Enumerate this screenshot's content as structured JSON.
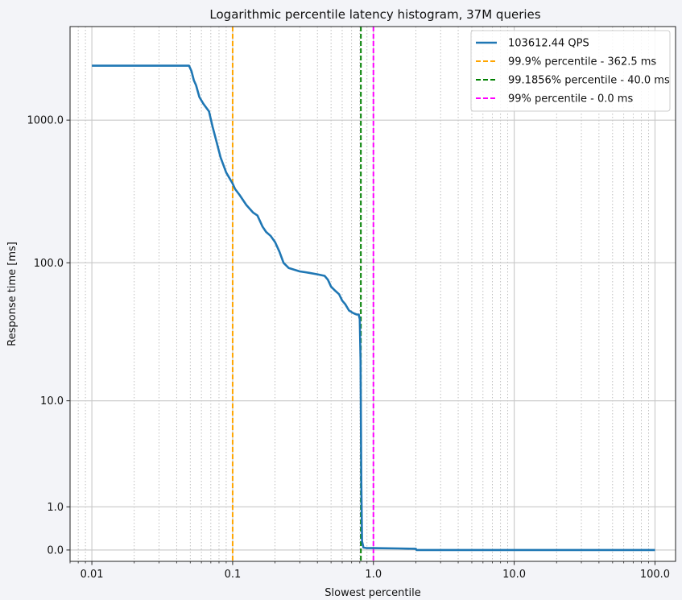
{
  "chart_data": {
    "type": "line",
    "title": "Logarithmic percentile latency histogram, 37M queries",
    "xlabel": "Slowest percentile",
    "ylabel": "Response time [ms]",
    "x_scale": "log",
    "x_range": [
      0.007,
      140
    ],
    "x_ticks": [
      {
        "value": 0.01,
        "label": "0.01"
      },
      {
        "value": 0.1,
        "label": "0.1"
      },
      {
        "value": 1,
        "label": "1.0"
      },
      {
        "value": 10,
        "label": "10.0"
      },
      {
        "value": 100,
        "label": "100.0"
      }
    ],
    "y_scale": "symlog",
    "y_range": [
      -0.2,
      4500
    ],
    "y_ticks": [
      {
        "value": 0,
        "label": "0.0"
      },
      {
        "value": 1,
        "label": "1.0"
      },
      {
        "value": 10,
        "label": "10.0"
      },
      {
        "value": 100,
        "label": "100.0"
      },
      {
        "value": 1000,
        "label": "1000.0"
      }
    ],
    "grid": true,
    "legend_position": "top-right",
    "series": [
      {
        "name": "103612.44 QPS",
        "color": "#1f77b4",
        "style": "solid",
        "points": [
          [
            0.01,
            2400
          ],
          [
            0.049,
            2400
          ],
          [
            0.051,
            2200
          ],
          [
            0.053,
            1900
          ],
          [
            0.055,
            1750
          ],
          [
            0.058,
            1450
          ],
          [
            0.062,
            1300
          ],
          [
            0.068,
            1150
          ],
          [
            0.072,
            900
          ],
          [
            0.077,
            700
          ],
          [
            0.082,
            550
          ],
          [
            0.09,
            430
          ],
          [
            0.1,
            360
          ],
          [
            0.104,
            330
          ],
          [
            0.112,
            300
          ],
          [
            0.125,
            255
          ],
          [
            0.14,
            225
          ],
          [
            0.15,
            215
          ],
          [
            0.163,
            180
          ],
          [
            0.173,
            165
          ],
          [
            0.186,
            155
          ],
          [
            0.2,
            140
          ],
          [
            0.215,
            120
          ],
          [
            0.23,
            100
          ],
          [
            0.25,
            92
          ],
          [
            0.3,
            87
          ],
          [
            0.35,
            85
          ],
          [
            0.4,
            83
          ],
          [
            0.45,
            81
          ],
          [
            0.475,
            76
          ],
          [
            0.5,
            68
          ],
          [
            0.53,
            64
          ],
          [
            0.57,
            60
          ],
          [
            0.6,
            54
          ],
          [
            0.63,
            51
          ],
          [
            0.67,
            46
          ],
          [
            0.72,
            44
          ],
          [
            0.76,
            43
          ],
          [
            0.785,
            43
          ],
          [
            0.8,
            40
          ],
          [
            0.81,
            20
          ],
          [
            0.82,
            2
          ],
          [
            0.83,
            0.15
          ],
          [
            0.85,
            0.04
          ],
          [
            0.9,
            0.03
          ],
          [
            1.0,
            0.03
          ],
          [
            1.5,
            0.025
          ],
          [
            2.0,
            0.02
          ],
          [
            2.02,
            0.0
          ],
          [
            100,
            0.0
          ]
        ]
      },
      {
        "name": "99.9% percentile - 362.5 ms",
        "color": "#ffa500",
        "style": "dashed",
        "vline_x": 0.1
      },
      {
        "name": "99.1856% percentile - 40.0 ms",
        "color": "#008000",
        "style": "dashed",
        "vline_x": 0.8144
      },
      {
        "name": "99% percentile - 0.0 ms",
        "color": "#ff00ff",
        "style": "dashed",
        "vline_x": 1.0
      }
    ]
  }
}
